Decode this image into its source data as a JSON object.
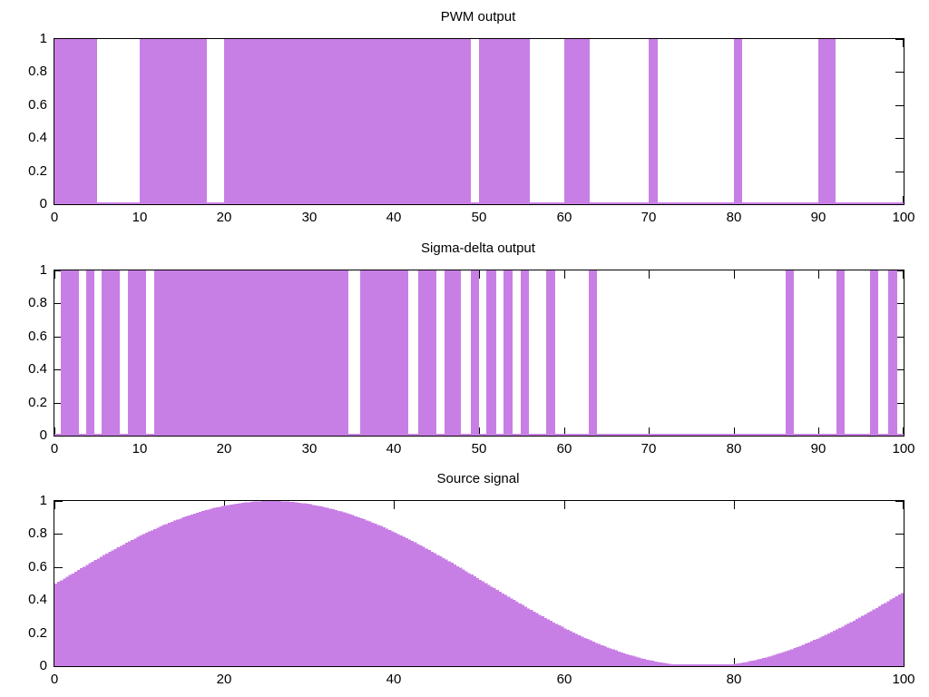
{
  "colors": {
    "bar_fill": "#c87fe5",
    "axis": "#000000",
    "text": "#000000",
    "background": "#ffffff"
  },
  "chart_data": [
    {
      "type": "bar",
      "title": "PWM output",
      "xlim": [
        0,
        100
      ],
      "ylim": [
        0,
        1
      ],
      "grid": false,
      "legend": "none",
      "x_ticks": [
        0,
        10,
        20,
        30,
        40,
        50,
        60,
        70,
        80,
        90,
        100
      ],
      "x_tick_labels": [
        "0",
        "10",
        "20",
        "30",
        "40",
        "50",
        "60",
        "70",
        "80",
        "90",
        "100"
      ],
      "y_ticks": [
        0,
        0.2,
        0.4,
        0.6,
        0.8,
        1
      ],
      "y_tick_labels": [
        "0",
        "0.2",
        "0.4",
        "0.6",
        "0.8",
        "1"
      ],
      "bar_value": 1,
      "bars": [
        [
          0,
          5
        ],
        [
          10,
          18
        ],
        [
          20,
          49
        ],
        [
          50,
          56
        ],
        [
          60,
          63
        ],
        [
          70,
          71
        ],
        [
          80,
          81
        ],
        [
          90,
          92
        ]
      ],
      "duty_per_decade": [
        5,
        8,
        10,
        10,
        9,
        6,
        3,
        1,
        1,
        2
      ]
    },
    {
      "type": "bar",
      "title": "Sigma-delta output",
      "xlim": [
        0,
        100
      ],
      "ylim": [
        0,
        1
      ],
      "grid": false,
      "legend": "none",
      "x_ticks": [
        0,
        10,
        20,
        30,
        40,
        50,
        60,
        70,
        80,
        90,
        100
      ],
      "x_tick_labels": [
        "0",
        "10",
        "20",
        "30",
        "40",
        "50",
        "60",
        "70",
        "80",
        "90",
        "100"
      ],
      "y_ticks": [
        0,
        0.2,
        0.4,
        0.6,
        0.8,
        1
      ],
      "y_tick_labels": [
        "0",
        "0.2",
        "0.4",
        "0.6",
        "0.8",
        "1"
      ],
      "bar_value": 1,
      "bars": [
        [
          0.7,
          2.9
        ],
        [
          3.7,
          4.7
        ],
        [
          5.6,
          7.7
        ],
        [
          8.7,
          10.8
        ],
        [
          11.8,
          34.6
        ],
        [
          36.0,
          41.7
        ],
        [
          42.8,
          45.0
        ],
        [
          45.9,
          47.9
        ],
        [
          49.0,
          50.0
        ],
        [
          50.9,
          52.0
        ],
        [
          52.9,
          53.9
        ],
        [
          54.9,
          55.9
        ],
        [
          57.9,
          59.0
        ],
        [
          62.9,
          63.9
        ],
        [
          86.1,
          87.1
        ],
        [
          92.1,
          93.1
        ],
        [
          96.0,
          97.0
        ],
        [
          98.2,
          99.2
        ]
      ]
    },
    {
      "type": "area",
      "title": "Source signal",
      "xlim": [
        0,
        100
      ],
      "ylim": [
        0,
        1
      ],
      "grid": false,
      "legend": "none",
      "x_ticks": [
        0,
        20,
        40,
        60,
        80,
        100
      ],
      "x_tick_labels": [
        "0",
        "20",
        "40",
        "60",
        "80",
        "100"
      ],
      "y_ticks": [
        0,
        0.2,
        0.4,
        0.6,
        0.8,
        1
      ],
      "y_tick_labels": [
        "0",
        "0.2",
        "0.4",
        "0.6",
        "0.8",
        "1"
      ],
      "waveform": {
        "formula": "y = offset + amplitude * sin(2*pi*x/period)",
        "offset": 0.5,
        "amplitude": 0.5,
        "period": 101.5,
        "samples": 300,
        "staircase_step_x": 0.3333
      },
      "key_points_x": [
        0,
        10,
        20,
        25,
        30,
        40,
        50,
        60,
        70,
        75,
        80,
        90,
        100
      ],
      "key_points_y": [
        0.5,
        0.79,
        0.97,
        1.0,
        0.98,
        0.81,
        0.52,
        0.23,
        0.04,
        0.0,
        0.02,
        0.17,
        0.45
      ]
    }
  ]
}
